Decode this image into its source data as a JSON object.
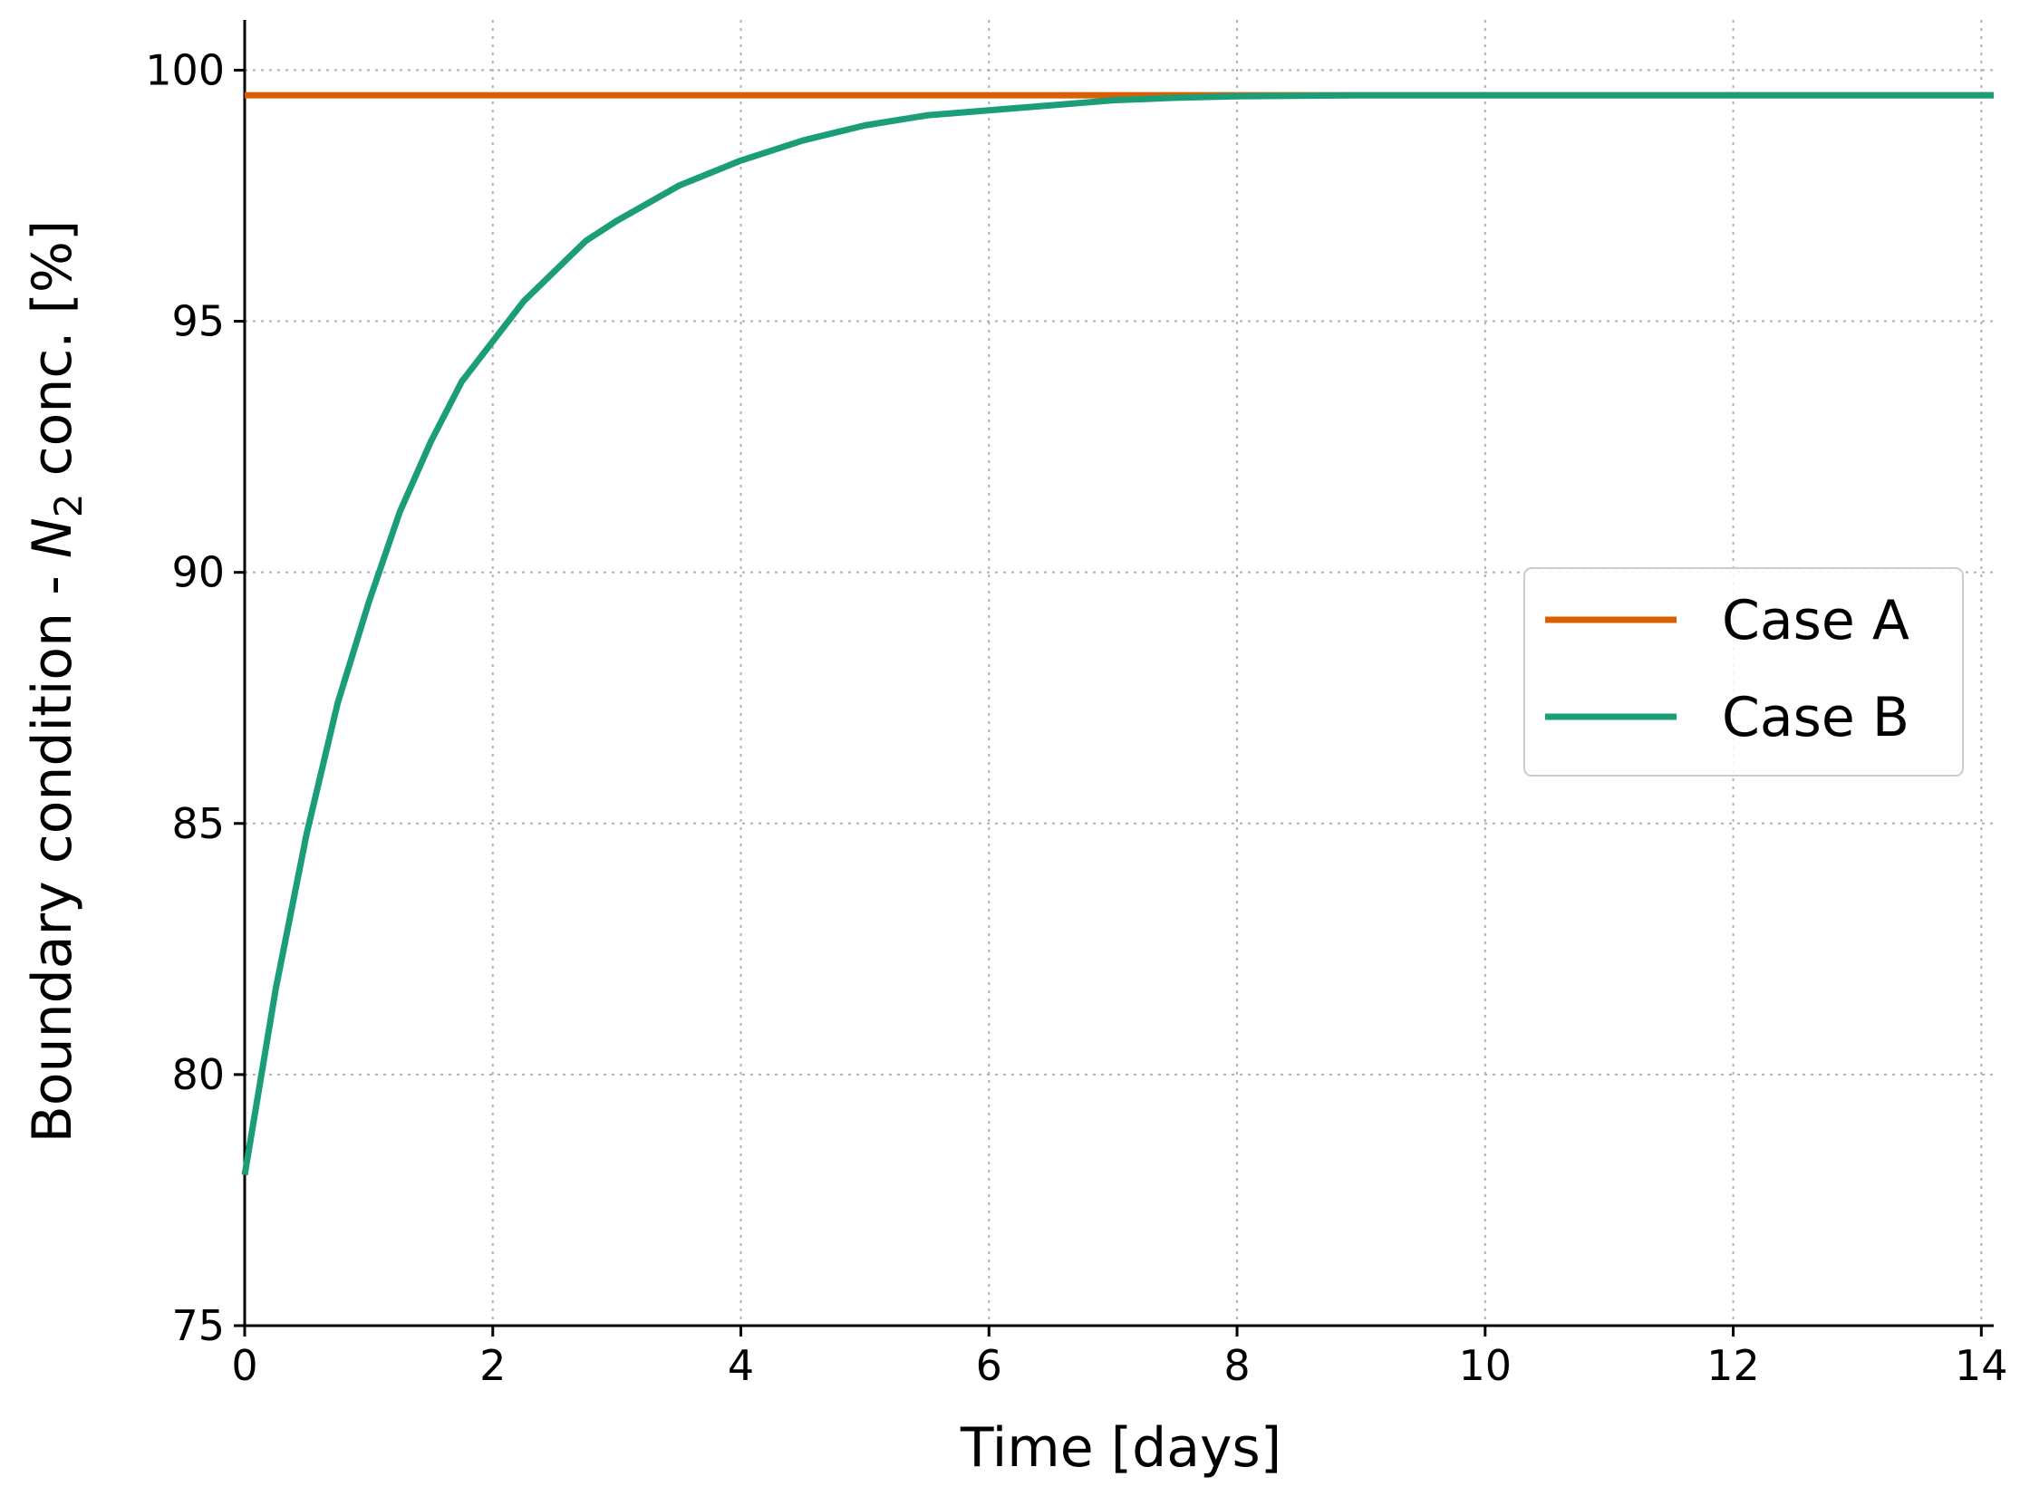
{
  "chart_data": {
    "type": "line",
    "title": "",
    "xlabel": "Time [days]",
    "ylabel": {
      "prefix": "Boundary condition - ",
      "symbol": "N",
      "subscript": "2",
      "suffix": " conc. [%]"
    },
    "xlim": [
      0,
      14.1
    ],
    "ylim": [
      75,
      101
    ],
    "xticks": [
      0,
      2,
      4,
      6,
      8,
      10,
      12,
      14
    ],
    "yticks": [
      75,
      80,
      85,
      90,
      95,
      100
    ],
    "grid": true,
    "legend_position": "center-right",
    "series": [
      {
        "name": "Case A",
        "color": "#d95f02",
        "x": [
          0,
          14.1
        ],
        "y": [
          99.5,
          99.5
        ]
      },
      {
        "name": "Case B",
        "color": "#1b9e77",
        "x": [
          0,
          0.25,
          0.5,
          0.75,
          1,
          1.25,
          1.5,
          1.75,
          2,
          2.25,
          2.5,
          2.75,
          3,
          3.5,
          4,
          4.5,
          5,
          5.5,
          6,
          6.5,
          7,
          7.5,
          8,
          9,
          10,
          11,
          12,
          13,
          14.1
        ],
        "y": [
          78.0,
          81.7,
          84.8,
          87.4,
          89.4,
          91.2,
          92.6,
          93.8,
          94.6,
          95.4,
          96.0,
          96.6,
          97.0,
          97.7,
          98.2,
          98.6,
          98.9,
          99.1,
          99.2,
          99.3,
          99.4,
          99.45,
          99.48,
          99.5,
          99.5,
          99.5,
          99.5,
          99.5,
          99.5
        ]
      }
    ]
  }
}
